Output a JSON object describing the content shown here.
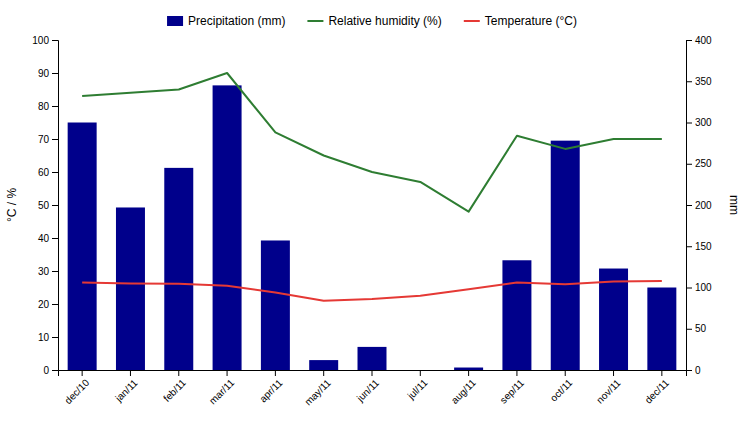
{
  "chart_data": {
    "type": "bar",
    "categories": [
      "dec/10",
      "jan/11",
      "feb/11",
      "mar/11",
      "apr/11",
      "may/11",
      "jun/11",
      "jul/11",
      "aug/11",
      "sep/11",
      "oct/11",
      "nov/11",
      "dec/11"
    ],
    "series": [
      {
        "name": "Precipitation (mm)",
        "type": "bar",
        "axis": "y2",
        "color": "#00008B",
        "values": [
          300,
          197,
          245,
          345,
          157,
          12,
          28,
          0,
          3,
          133,
          278,
          123,
          100
        ]
      },
      {
        "name": "Relative humidity (%)",
        "type": "line",
        "color": "#2e7d32",
        "values": [
          83,
          84,
          85,
          90,
          72,
          65,
          60,
          57,
          48,
          71,
          67,
          70,
          70
        ]
      },
      {
        "name": "Temperature (°C)",
        "type": "line",
        "color": "#e53935",
        "values": [
          26.5,
          26.2,
          26.1,
          25.5,
          23.5,
          21.0,
          21.5,
          22.5,
          24.5,
          26.5,
          26.0,
          26.8,
          27.0
        ]
      }
    ],
    "ylabel": "°C / %",
    "y2label": "mm",
    "ylim": [
      0,
      100
    ],
    "yticks": [
      0,
      10,
      20,
      30,
      40,
      50,
      60,
      70,
      80,
      90,
      100
    ],
    "y2lim": [
      0,
      400
    ],
    "y2ticks": [
      0,
      50,
      100,
      150,
      200,
      250,
      300,
      350,
      400
    ],
    "legend": "top"
  }
}
